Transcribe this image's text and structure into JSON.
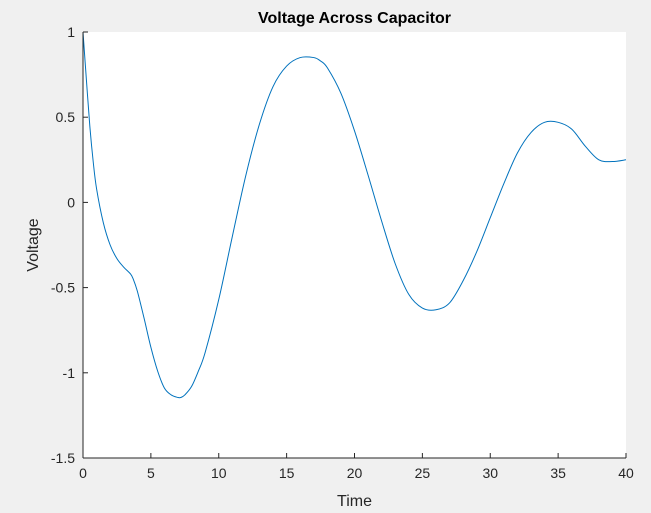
{
  "chart_data": {
    "type": "line",
    "title": "Voltage Across Capacitor",
    "xlabel": "Time",
    "ylabel": "Voltage",
    "xlim": [
      0,
      40
    ],
    "ylim": [
      -1.5,
      1
    ],
    "xticks": [
      0,
      5,
      10,
      15,
      20,
      25,
      30,
      35,
      40
    ],
    "xtick_labels": [
      "0",
      "5",
      "10",
      "15",
      "20",
      "25",
      "30",
      "35",
      "40"
    ],
    "yticks": [
      -1.5,
      -1,
      -0.5,
      0,
      0.5,
      1
    ],
    "ytick_labels": [
      "-1.5",
      "-1",
      "-0.5",
      "0",
      "0.5",
      "1"
    ],
    "grid": false,
    "legend": "none",
    "colors": {
      "line": "#0072bd",
      "axes_background": "#ffffff",
      "figure_background": "#f0f0f0",
      "axis_color": "#262626"
    },
    "series": [
      {
        "x": [
          0,
          0.25,
          0.5,
          0.75,
          1,
          1.5,
          2,
          2.5,
          3,
          3.5,
          3.7,
          4,
          4.5,
          5,
          5.5,
          6,
          6.5,
          7,
          7.2,
          7.5,
          8,
          8.5,
          9,
          10,
          11,
          12,
          13,
          14,
          15,
          16,
          17,
          17.5,
          18,
          19,
          20,
          21,
          22,
          23,
          24,
          25,
          26,
          27,
          28,
          29,
          30,
          31,
          32,
          33,
          34,
          35,
          36,
          37,
          38,
          39,
          40
        ],
        "y": [
          1,
          0.72,
          0.45,
          0.24,
          0.08,
          -0.12,
          -0.25,
          -0.33,
          -0.38,
          -0.42,
          -0.45,
          -0.52,
          -0.68,
          -0.85,
          -0.99,
          -1.09,
          -1.13,
          -1.145,
          -1.145,
          -1.13,
          -1.08,
          -0.99,
          -0.88,
          -0.57,
          -0.2,
          0.16,
          0.46,
          0.68,
          0.8,
          0.85,
          0.85,
          0.83,
          0.79,
          0.64,
          0.42,
          0.16,
          -0.11,
          -0.36,
          -0.54,
          -0.62,
          -0.63,
          -0.59,
          -0.46,
          -0.29,
          -0.09,
          0.11,
          0.29,
          0.41,
          0.47,
          0.47,
          0.43,
          0.33,
          0.25,
          0.24,
          0.25
        ]
      }
    ]
  }
}
